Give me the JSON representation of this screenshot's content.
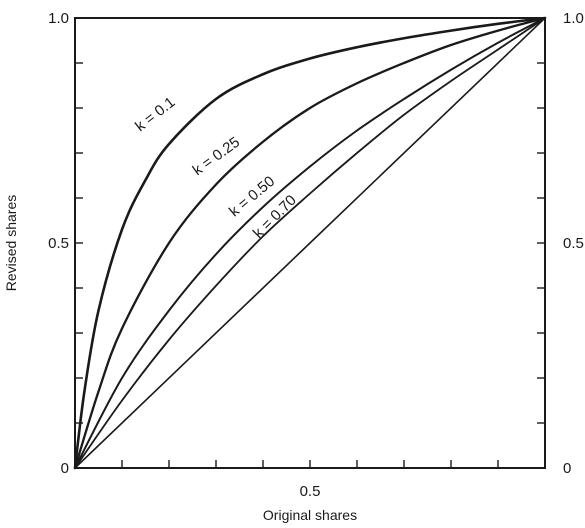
{
  "chart_data": {
    "type": "line",
    "title": "",
    "xlabel": "Original shares",
    "ylabel": "Revised shares",
    "xlim": [
      0,
      1
    ],
    "ylim": [
      0,
      1
    ],
    "grid": false,
    "x_ticks": [
      0.1,
      0.2,
      0.3,
      0.4,
      0.5,
      0.6,
      0.7,
      0.8,
      0.9
    ],
    "y_ticks": [
      0.1,
      0.2,
      0.3,
      0.4,
      0.5,
      0.6,
      0.7,
      0.8,
      0.9
    ],
    "x_tick_labels": [
      {
        "value": 0.5,
        "label": "0.5"
      }
    ],
    "y_tick_labels_left": [
      {
        "value": 0,
        "label": "0"
      },
      {
        "value": 0.5,
        "label": "0.5"
      },
      {
        "value": 1,
        "label": "1.0"
      }
    ],
    "y_tick_labels_right": [
      {
        "value": 0,
        "label": "0"
      },
      {
        "value": 0.5,
        "label": "0.5"
      },
      {
        "value": 1,
        "label": "1.0"
      }
    ],
    "series": [
      {
        "name": "k = 0.1",
        "label": "k = 0.1",
        "x": [
          0,
          0.02,
          0.05,
          0.1,
          0.15,
          0.2,
          0.3,
          0.4,
          0.5,
          0.6,
          0.7,
          0.8,
          0.9,
          1.0
        ],
        "y": [
          0,
          0.17,
          0.35,
          0.53,
          0.64,
          0.72,
          0.82,
          0.875,
          0.91,
          0.935,
          0.955,
          0.972,
          0.987,
          1.0
        ]
      },
      {
        "name": "k = 0.25",
        "label": "k = 0.25",
        "x": [
          0,
          0.05,
          0.1,
          0.2,
          0.3,
          0.4,
          0.5,
          0.6,
          0.7,
          0.8,
          0.9,
          1.0
        ],
        "y": [
          0,
          0.17,
          0.31,
          0.5,
          0.63,
          0.725,
          0.8,
          0.855,
          0.9,
          0.94,
          0.972,
          1.0
        ]
      },
      {
        "name": "k = 0.50",
        "label": "k = 0.50",
        "x": [
          0,
          0.1,
          0.2,
          0.3,
          0.4,
          0.5,
          0.6,
          0.7,
          0.8,
          0.9,
          1.0
        ],
        "y": [
          0,
          0.2,
          0.35,
          0.475,
          0.58,
          0.67,
          0.75,
          0.82,
          0.885,
          0.945,
          1.0
        ]
      },
      {
        "name": "k = 0.70",
        "label": "k = 0.70",
        "x": [
          0,
          0.1,
          0.2,
          0.3,
          0.4,
          0.5,
          0.6,
          0.7,
          0.8,
          0.9,
          1.0
        ],
        "y": [
          0,
          0.15,
          0.285,
          0.405,
          0.515,
          0.61,
          0.7,
          0.785,
          0.86,
          0.93,
          1.0
        ]
      },
      {
        "name": "",
        "x": [
          0,
          1
        ],
        "y": [
          0,
          1
        ]
      }
    ]
  }
}
